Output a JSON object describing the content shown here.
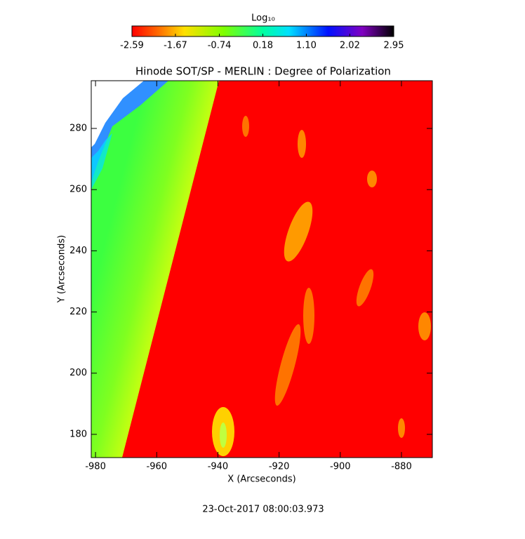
{
  "chart_data": {
    "type": "heatmap",
    "title": "Hinode SOT/SP - MERLIN : Degree of Polarization",
    "x_label": "X (Arcseconds)",
    "y_label": "Y (Arcseconds)",
    "footer": "23-Oct-2017 08:00:03.973",
    "colorbar_label": "Log₁₀",
    "zlim": [
      -2.59,
      2.95
    ],
    "zticks": [
      -2.59,
      -1.67,
      -0.74,
      0.18,
      {
        "value": 1.1,
        "label": "1.10"
      },
      2.02,
      2.95
    ],
    "xlim": [
      -981.4,
      -869.9
    ],
    "xticks": [
      -980,
      -960,
      -940,
      -920,
      -900,
      -880
    ],
    "ylim": [
      172.4,
      295.6
    ],
    "yticks": [
      180,
      200,
      220,
      240,
      260,
      280
    ]
  }
}
